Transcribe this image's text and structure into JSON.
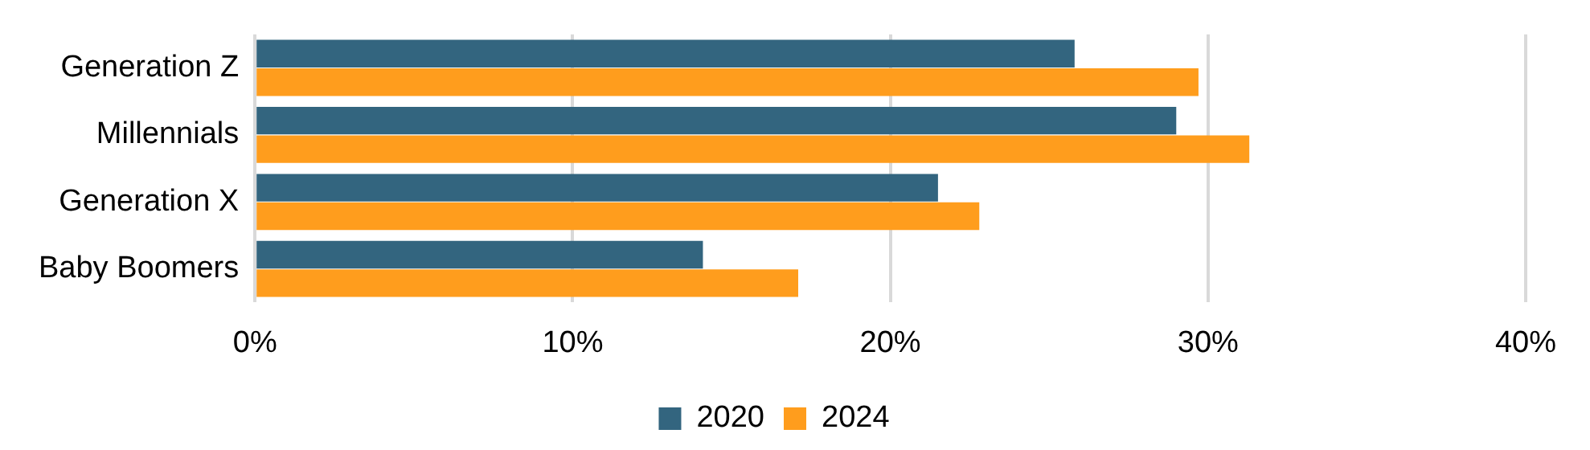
{
  "chart_data": {
    "type": "bar",
    "orientation": "horizontal",
    "categories": [
      "Generation Z",
      "Millennials",
      "Generation X",
      "Baby Boomers"
    ],
    "series": [
      {
        "name": "2020",
        "color": "#33657f",
        "values": [
          25.8,
          29.0,
          21.5,
          14.1
        ]
      },
      {
        "name": "2024",
        "color": "#ff9d1d",
        "values": [
          29.7,
          31.3,
          22.8,
          17.1
        ]
      }
    ],
    "xlim": [
      0,
      40
    ],
    "xticks": [
      {
        "value": 0,
        "label": "0%"
      },
      {
        "value": 10,
        "label": "10%"
      },
      {
        "value": 20,
        "label": "20%"
      },
      {
        "value": 30,
        "label": "30%"
      },
      {
        "value": 40,
        "label": "40%"
      }
    ],
    "grid": "x",
    "legend": "bottom"
  }
}
